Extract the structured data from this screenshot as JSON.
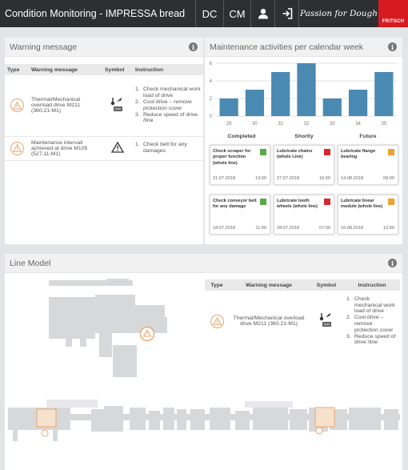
{
  "header": {
    "title": "Condition Monitoring - IMPRESSA bread",
    "dc_label": "DC",
    "cm_label": "CM",
    "user_icon": "user-icon",
    "logout_icon": "logout-icon",
    "slogan": "Passion for Dough",
    "brand": "FRITSCH"
  },
  "warning_panel": {
    "title": "Warning message",
    "columns": [
      "Type",
      "Warning message",
      "Symbol",
      "Instruction"
    ],
    "rows": [
      {
        "message": "Thermal/Mechanical overload drive M211 (360.21-M1)",
        "instructions": [
          {
            "n": "1.",
            "text": "Check mechanical work load of drive"
          },
          {
            "n": "2.",
            "text": "Cool drive – remove protection cover"
          },
          {
            "n": "3.",
            "text": "Reduce speed of drive /line"
          }
        ]
      },
      {
        "message": "Maintenance intervall achieved at drive M105 (527.11-M1)",
        "instructions": [
          {
            "n": "1.",
            "text": "Check belt for any damages"
          }
        ]
      }
    ]
  },
  "maintenance_panel": {
    "title": "Maintenance activities per calendar week",
    "columns": [
      "Completed",
      "Shortly",
      "Future"
    ],
    "cards": [
      {
        "title": "Check scraper for proper function (whole line)",
        "date": "21.07.2018",
        "time": "13:00",
        "status_color": "#5aa845"
      },
      {
        "title": "Lubricate chains (whole Line)",
        "date": "27.07.2018",
        "time": "16:00",
        "status_color": "#d7282f"
      },
      {
        "title": "Lubricate flange bearing",
        "date": "14.08.2018",
        "time": "09:00",
        "status_color": "#f0a030"
      },
      {
        "title": "Check conveyor belt for any damage",
        "date": "18.07.2018",
        "time": "11:00",
        "status_color": "#5aa845"
      },
      {
        "title": "Lubricate tooth wheels (whole line)",
        "date": "28.07.2018",
        "time": "07:00",
        "status_color": "#d7282f"
      },
      {
        "title": "Lubricate linear module (whole line)",
        "date": "16.08.2018",
        "time": "12:00",
        "status_color": "#f0a030"
      }
    ]
  },
  "chart_data": {
    "type": "bar",
    "categories": [
      "29",
      "30",
      "31",
      "32",
      "33",
      "34",
      "35"
    ],
    "values": [
      2,
      3,
      5,
      6,
      2,
      3,
      5
    ],
    "ylim": [
      0,
      6
    ],
    "yticks": [
      "0",
      "2",
      "4",
      "6"
    ],
    "grid": true,
    "bar_color": "#4a8ab2"
  },
  "line_panel": {
    "title": "Line Model",
    "columns": [
      "Type",
      "Warning message",
      "Symbol",
      "Instruction"
    ],
    "row": {
      "message": "Thermal/Mechanical overload drive M211 (360.21-M1)",
      "instructions": [
        {
          "n": "1.",
          "text": "Check mechanical work load of drive"
        },
        {
          "n": "2.",
          "text": "Cool drive – remove protection cover"
        },
        {
          "n": "3.",
          "text": "Reduce speed of drive /line"
        }
      ]
    }
  },
  "colors": {
    "accent": "#e9a76c",
    "topbar": "#2e2f31",
    "brand_red": "#d71920",
    "bar": "#4a8ab2"
  }
}
